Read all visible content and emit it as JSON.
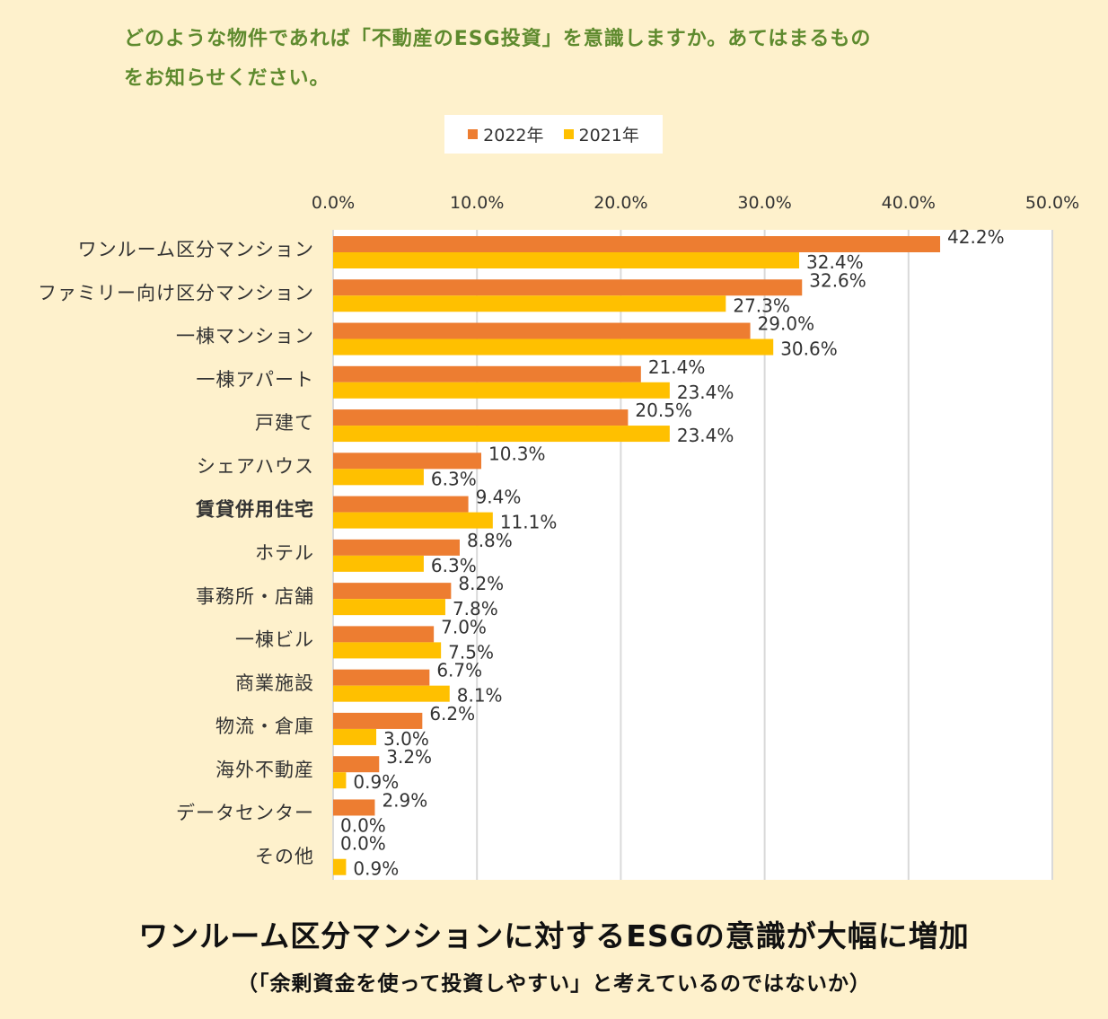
{
  "title_line1": "どのような物件であれば「不動産のESG投資」を意識しますか。あてはまるもの",
  "title_line2": "をお知らせください。",
  "headline": "ワンルーム区分マンションに対するESGの意識が大幅に増加",
  "subline": "（「余剰資金を使って投資しやすい」と考えているのではないか）",
  "colors": {
    "series_2022": "#ED7D31",
    "series_2021": "#FFC000",
    "background": "#FEF1CC",
    "title": "#5E8A2E"
  },
  "chart_data": {
    "type": "bar",
    "orientation": "horizontal",
    "legend_position": "top",
    "grid": true,
    "xlim": [
      0,
      50
    ],
    "ticks": [
      "0.0%",
      "10.0%",
      "20.0%",
      "30.0%",
      "40.0%",
      "50.0%"
    ],
    "categories": [
      "ワンルーム区分マンション",
      "ファミリー向け区分マンション",
      "一棟マンション",
      "一棟アパート",
      "戸建て",
      "シェアハウス",
      "賃貸併用住宅",
      "ホテル",
      "事務所・店舗",
      "一棟ビル",
      "商業施設",
      "物流・倉庫",
      "海外不動産",
      "データセンター",
      "その他"
    ],
    "series": [
      {
        "name": "2022年",
        "values": [
          42.2,
          32.6,
          29.0,
          21.4,
          20.5,
          10.3,
          9.4,
          8.8,
          8.2,
          7.0,
          6.7,
          6.2,
          3.2,
          2.9,
          0.0
        ]
      },
      {
        "name": "2021年",
        "values": [
          32.4,
          27.3,
          30.6,
          23.4,
          23.4,
          6.3,
          11.1,
          6.3,
          7.8,
          7.5,
          8.1,
          3.0,
          0.9,
          0.0,
          0.9
        ]
      }
    ]
  }
}
